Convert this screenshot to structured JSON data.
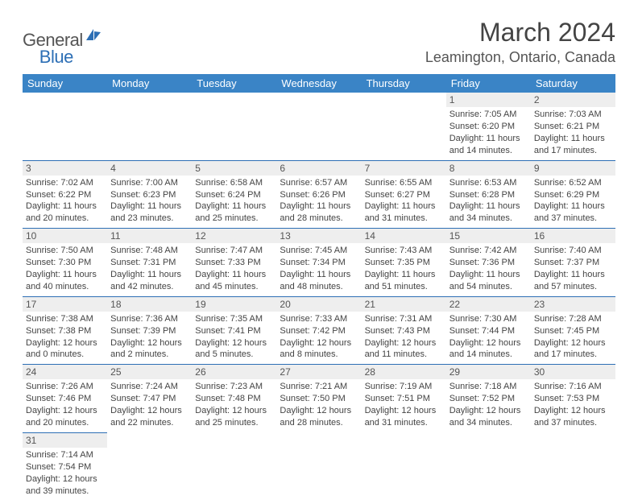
{
  "logo": {
    "general": "General",
    "blue": "Blue"
  },
  "title": "March 2024",
  "location": "Leamington, Ontario, Canada",
  "colors": {
    "header_bg": "#3a84c6",
    "header_text": "#ffffff",
    "daynum_bg": "#eeeeee",
    "border": "#2d6fb5",
    "text": "#444444"
  },
  "dayHeaders": [
    "Sunday",
    "Monday",
    "Tuesday",
    "Wednesday",
    "Thursday",
    "Friday",
    "Saturday"
  ],
  "weeks": [
    [
      null,
      null,
      null,
      null,
      null,
      {
        "n": "1",
        "sr": "7:05 AM",
        "ss": "6:20 PM",
        "dl": "11 hours and 14 minutes."
      },
      {
        "n": "2",
        "sr": "7:03 AM",
        "ss": "6:21 PM",
        "dl": "11 hours and 17 minutes."
      }
    ],
    [
      {
        "n": "3",
        "sr": "7:02 AM",
        "ss": "6:22 PM",
        "dl": "11 hours and 20 minutes."
      },
      {
        "n": "4",
        "sr": "7:00 AM",
        "ss": "6:23 PM",
        "dl": "11 hours and 23 minutes."
      },
      {
        "n": "5",
        "sr": "6:58 AM",
        "ss": "6:24 PM",
        "dl": "11 hours and 25 minutes."
      },
      {
        "n": "6",
        "sr": "6:57 AM",
        "ss": "6:26 PM",
        "dl": "11 hours and 28 minutes."
      },
      {
        "n": "7",
        "sr": "6:55 AM",
        "ss": "6:27 PM",
        "dl": "11 hours and 31 minutes."
      },
      {
        "n": "8",
        "sr": "6:53 AM",
        "ss": "6:28 PM",
        "dl": "11 hours and 34 minutes."
      },
      {
        "n": "9",
        "sr": "6:52 AM",
        "ss": "6:29 PM",
        "dl": "11 hours and 37 minutes."
      }
    ],
    [
      {
        "n": "10",
        "sr": "7:50 AM",
        "ss": "7:30 PM",
        "dl": "11 hours and 40 minutes."
      },
      {
        "n": "11",
        "sr": "7:48 AM",
        "ss": "7:31 PM",
        "dl": "11 hours and 42 minutes."
      },
      {
        "n": "12",
        "sr": "7:47 AM",
        "ss": "7:33 PM",
        "dl": "11 hours and 45 minutes."
      },
      {
        "n": "13",
        "sr": "7:45 AM",
        "ss": "7:34 PM",
        "dl": "11 hours and 48 minutes."
      },
      {
        "n": "14",
        "sr": "7:43 AM",
        "ss": "7:35 PM",
        "dl": "11 hours and 51 minutes."
      },
      {
        "n": "15",
        "sr": "7:42 AM",
        "ss": "7:36 PM",
        "dl": "11 hours and 54 minutes."
      },
      {
        "n": "16",
        "sr": "7:40 AM",
        "ss": "7:37 PM",
        "dl": "11 hours and 57 minutes."
      }
    ],
    [
      {
        "n": "17",
        "sr": "7:38 AM",
        "ss": "7:38 PM",
        "dl": "12 hours and 0 minutes."
      },
      {
        "n": "18",
        "sr": "7:36 AM",
        "ss": "7:39 PM",
        "dl": "12 hours and 2 minutes."
      },
      {
        "n": "19",
        "sr": "7:35 AM",
        "ss": "7:41 PM",
        "dl": "12 hours and 5 minutes."
      },
      {
        "n": "20",
        "sr": "7:33 AM",
        "ss": "7:42 PM",
        "dl": "12 hours and 8 minutes."
      },
      {
        "n": "21",
        "sr": "7:31 AM",
        "ss": "7:43 PM",
        "dl": "12 hours and 11 minutes."
      },
      {
        "n": "22",
        "sr": "7:30 AM",
        "ss": "7:44 PM",
        "dl": "12 hours and 14 minutes."
      },
      {
        "n": "23",
        "sr": "7:28 AM",
        "ss": "7:45 PM",
        "dl": "12 hours and 17 minutes."
      }
    ],
    [
      {
        "n": "24",
        "sr": "7:26 AM",
        "ss": "7:46 PM",
        "dl": "12 hours and 20 minutes."
      },
      {
        "n": "25",
        "sr": "7:24 AM",
        "ss": "7:47 PM",
        "dl": "12 hours and 22 minutes."
      },
      {
        "n": "26",
        "sr": "7:23 AM",
        "ss": "7:48 PM",
        "dl": "12 hours and 25 minutes."
      },
      {
        "n": "27",
        "sr": "7:21 AM",
        "ss": "7:50 PM",
        "dl": "12 hours and 28 minutes."
      },
      {
        "n": "28",
        "sr": "7:19 AM",
        "ss": "7:51 PM",
        "dl": "12 hours and 31 minutes."
      },
      {
        "n": "29",
        "sr": "7:18 AM",
        "ss": "7:52 PM",
        "dl": "12 hours and 34 minutes."
      },
      {
        "n": "30",
        "sr": "7:16 AM",
        "ss": "7:53 PM",
        "dl": "12 hours and 37 minutes."
      }
    ],
    [
      {
        "n": "31",
        "sr": "7:14 AM",
        "ss": "7:54 PM",
        "dl": "12 hours and 39 minutes."
      },
      null,
      null,
      null,
      null,
      null,
      null
    ]
  ],
  "labels": {
    "sunrise": "Sunrise: ",
    "sunset": "Sunset: ",
    "daylight": "Daylight: "
  }
}
